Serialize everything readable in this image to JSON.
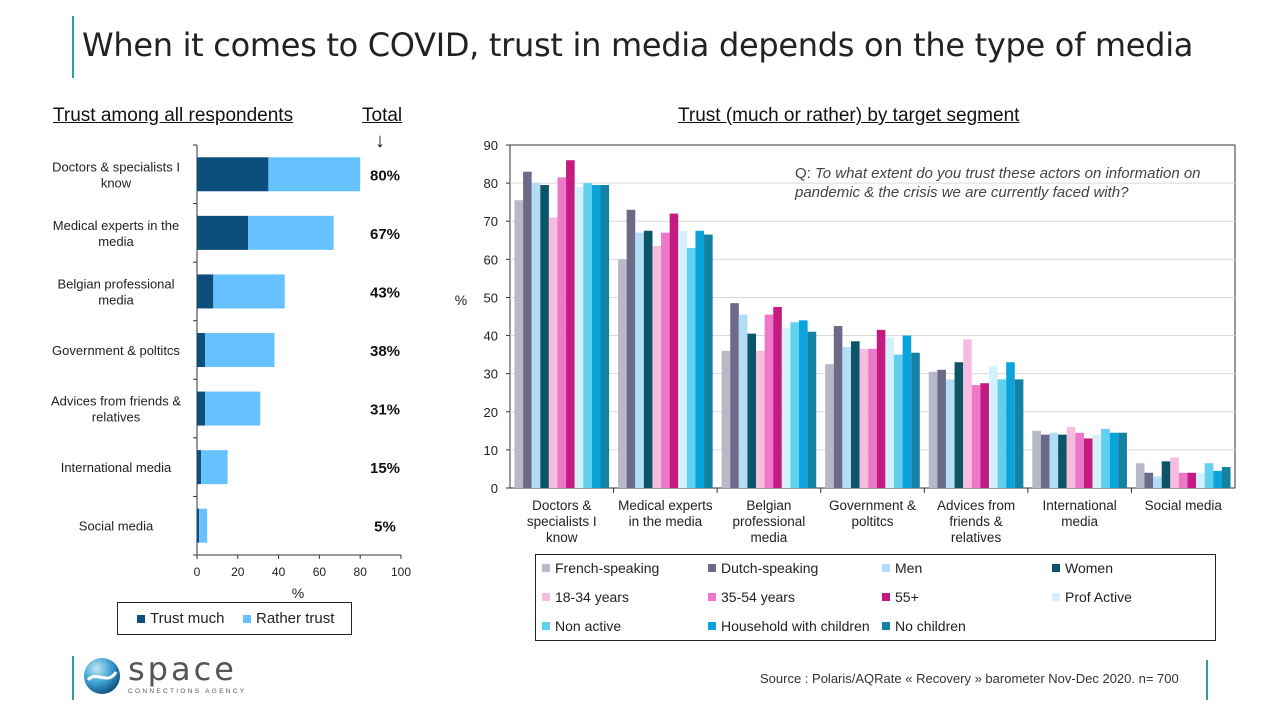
{
  "page": {
    "title": "When it comes to COVID, trust in media depends on the type of media",
    "source": "Source : Polaris/AQRate « Recovery » barometer Nov-Dec 2020. n= 700",
    "logo_name": "space",
    "logo_tagline": "CONNECTIONS AGENCY",
    "accent_color": "#2aa1a9"
  },
  "left": {
    "title": "Trust among all respondents",
    "total_label": "Total",
    "arrow": "↓"
  },
  "right": {
    "title": "Trust (much or rather) by target segment",
    "question_lead": "Q: ",
    "question": "To what extent do you trust these actors on information on pandemic & the crisis we are currently faced with?"
  },
  "chart_data": [
    {
      "type": "bar",
      "orientation": "horizontal",
      "stacked": true,
      "categories": [
        "Doctors & specialists I know",
        "Medical experts in the media",
        "Belgian professional media",
        "Government & poltitcs",
        "Advices from friends & relatives",
        "International media",
        "Social media"
      ],
      "series": [
        {
          "name": "Trust much",
          "color": "#0d4f7c",
          "values": [
            35,
            25,
            8,
            4,
            4,
            2,
            1
          ]
        },
        {
          "name": "Rather trust",
          "color": "#66c2ff",
          "values": [
            45,
            42,
            35,
            34,
            27,
            13,
            4
          ]
        }
      ],
      "totals": [
        "80%",
        "67%",
        "43%",
        "38%",
        "31%",
        "15%",
        "5%"
      ],
      "xlabel": "%",
      "xlim": [
        0,
        100
      ],
      "xticks": [
        0,
        20,
        40,
        60,
        80,
        100
      ],
      "legend_position": "bottom"
    },
    {
      "type": "bar",
      "orientation": "vertical",
      "categories": [
        "Doctors & specialists I know",
        "Medical experts in the media",
        "Belgian professional media",
        "Government & poltitcs",
        "Advices from friends & relatives",
        "International media",
        "Social media"
      ],
      "series": [
        {
          "name": "French-speaking",
          "color": "#b8b8c8",
          "values": [
            75.5,
            60,
            36,
            32.5,
            30.5,
            15,
            6.5
          ]
        },
        {
          "name": "Dutch-speaking",
          "color": "#6b6b88",
          "values": [
            83,
            73,
            48.5,
            42.5,
            31,
            14,
            4
          ]
        },
        {
          "name": "Men",
          "color": "#b3dcf7",
          "values": [
            80,
            67,
            45.5,
            37,
            28.5,
            14.5,
            3
          ]
        },
        {
          "name": "Women",
          "color": "#0b5566",
          "values": [
            79.5,
            67.5,
            40.5,
            38.5,
            33,
            14,
            7
          ]
        },
        {
          "name": "18-34 years",
          "color": "#f7bde0",
          "values": [
            71,
            63.5,
            36,
            36.5,
            39,
            16,
            8
          ]
        },
        {
          "name": "35-54 years",
          "color": "#ee77c9",
          "values": [
            81.5,
            67,
            45.5,
            36.5,
            27,
            14.5,
            4
          ]
        },
        {
          "name": "55+",
          "color": "#c41b82",
          "values": [
            86,
            72,
            47.5,
            41.5,
            27.5,
            13,
            4
          ]
        },
        {
          "name": "Prof Active",
          "color": "#d4f1fb",
          "values": [
            79,
            67.5,
            42,
            39.5,
            32,
            14,
            4
          ]
        },
        {
          "name": "Non active",
          "color": "#5fd0ee",
          "values": [
            80,
            63,
            43.5,
            35,
            28.5,
            15.5,
            6.5
          ]
        },
        {
          "name": "Household with children",
          "color": "#0aa3dc",
          "values": [
            79.5,
            67.5,
            44,
            40,
            33,
            14.5,
            4.5
          ]
        },
        {
          "name": "No children",
          "color": "#1482a3",
          "values": [
            79.5,
            66.5,
            41,
            35.5,
            28.5,
            14.5,
            5.5
          ]
        }
      ],
      "ylabel": "%",
      "ylim": [
        0,
        90
      ],
      "yticks": [
        0,
        10,
        20,
        30,
        40,
        50,
        60,
        70,
        80,
        90
      ],
      "grid": true,
      "legend_position": "bottom"
    }
  ]
}
